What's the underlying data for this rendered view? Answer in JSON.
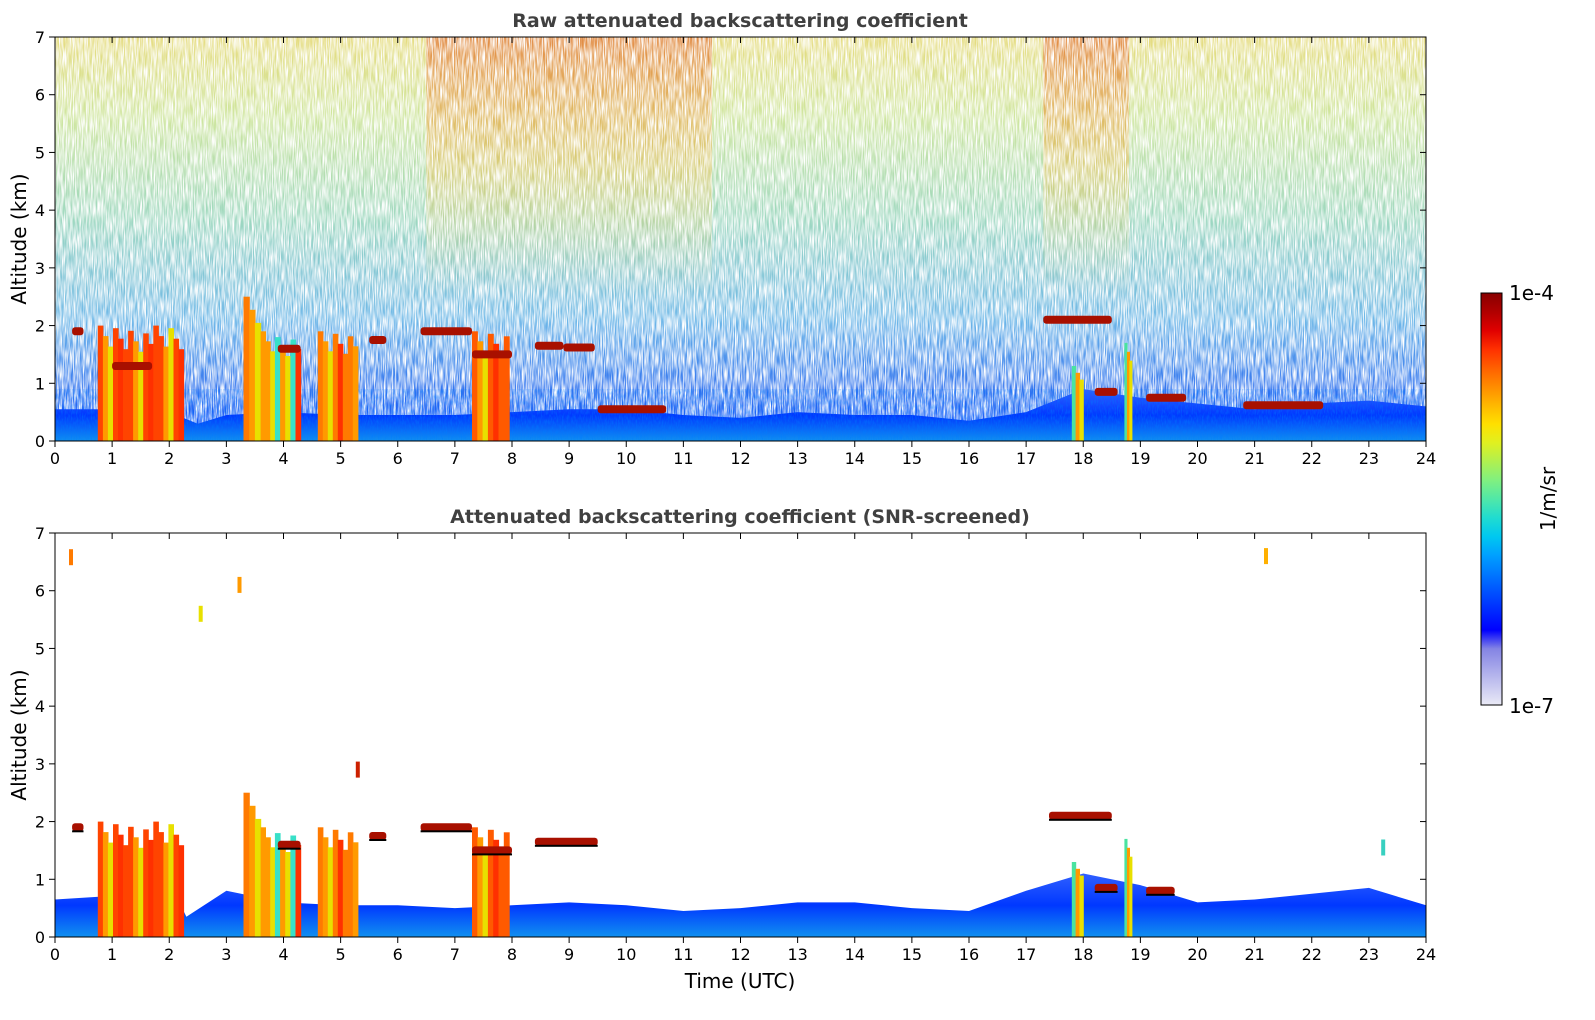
{
  "chart_data": [
    {
      "type": "heatmap",
      "title": "Raw attenuated backscattering coefficient",
      "xlabel": "",
      "ylabel": "Altitude (km)",
      "xlim": [
        0,
        24
      ],
      "ylim": [
        0,
        7
      ],
      "xticks": [
        "0",
        "1",
        "2",
        "3",
        "4",
        "5",
        "6",
        "7",
        "8",
        "9",
        "10",
        "11",
        "12",
        "13",
        "14",
        "15",
        "16",
        "17",
        "18",
        "19",
        "20",
        "21",
        "22",
        "23",
        "24"
      ],
      "yticks": [
        "0",
        "1",
        "2",
        "3",
        "4",
        "5",
        "6",
        "7"
      ],
      "screened": false,
      "boundary_layer_top_km": [
        [
          0,
          0.55
        ],
        [
          1,
          0.55
        ],
        [
          2,
          0.5
        ],
        [
          2.5,
          0.3
        ],
        [
          3,
          0.45
        ],
        [
          4,
          0.5
        ],
        [
          5,
          0.45
        ],
        [
          6,
          0.45
        ],
        [
          7,
          0.45
        ],
        [
          8,
          0.5
        ],
        [
          9,
          0.55
        ],
        [
          10,
          0.55
        ],
        [
          11,
          0.45
        ],
        [
          12,
          0.4
        ],
        [
          13,
          0.5
        ],
        [
          14,
          0.45
        ],
        [
          15,
          0.45
        ],
        [
          16,
          0.35
        ],
        [
          17,
          0.5
        ],
        [
          18,
          0.9
        ],
        [
          19,
          0.75
        ],
        [
          20,
          0.65
        ],
        [
          21,
          0.55
        ],
        [
          22,
          0.65
        ],
        [
          23,
          0.7
        ],
        [
          24,
          0.6
        ]
      ],
      "aerosol_columns": [
        {
          "x_start": 0.75,
          "x_end": 2.25,
          "top_km": 2.0,
          "color": "#ff4400"
        },
        {
          "x_start": 3.3,
          "x_end": 3.6,
          "top_km": 2.5,
          "color": "#ff7a00"
        },
        {
          "x_start": 3.6,
          "x_end": 3.85,
          "top_km": 1.9,
          "color": "#ff9a00"
        },
        {
          "x_start": 3.85,
          "x_end": 4.3,
          "top_km": 1.8,
          "color": "#38e0c8"
        },
        {
          "x_start": 4.6,
          "x_end": 5.3,
          "top_km": 1.9,
          "color": "#ff7a00"
        },
        {
          "x_start": 7.3,
          "x_end": 7.95,
          "top_km": 1.9,
          "color": "#ff5a00"
        },
        {
          "x_start": 17.8,
          "x_end": 18.0,
          "top_km": 1.3,
          "color": "#4ae3a0"
        },
        {
          "x_start": 18.72,
          "x_end": 18.85,
          "top_km": 1.7,
          "color": "#4ae3a0"
        }
      ],
      "cloud_layers": [
        {
          "x_start": 0.3,
          "x_end": 0.5,
          "altitude_km": 1.9
        },
        {
          "x_start": 1.0,
          "x_end": 1.7,
          "altitude_km": 1.3
        },
        {
          "x_start": 3.9,
          "x_end": 4.3,
          "altitude_km": 1.6
        },
        {
          "x_start": 5.5,
          "x_end": 5.8,
          "altitude_km": 1.75
        },
        {
          "x_start": 6.4,
          "x_end": 7.3,
          "altitude_km": 1.9
        },
        {
          "x_start": 7.3,
          "x_end": 8.0,
          "altitude_km": 1.5
        },
        {
          "x_start": 8.4,
          "x_end": 8.9,
          "altitude_km": 1.65
        },
        {
          "x_start": 8.9,
          "x_end": 9.45,
          "altitude_km": 1.62
        },
        {
          "x_start": 9.5,
          "x_end": 10.7,
          "altitude_km": 0.55
        },
        {
          "x_start": 17.3,
          "x_end": 18.5,
          "altitude_km": 2.1
        },
        {
          "x_start": 18.2,
          "x_end": 18.6,
          "altitude_km": 0.85
        },
        {
          "x_start": 19.1,
          "x_end": 19.8,
          "altitude_km": 0.75
        },
        {
          "x_start": 20.8,
          "x_end": 22.2,
          "altitude_km": 0.62
        }
      ],
      "high_signal_periods": [
        [
          6.5,
          11.5
        ],
        [
          17.3,
          18.8
        ]
      ]
    },
    {
      "type": "heatmap",
      "title": "Attenuated backscattering coefficient (SNR-screened)",
      "xlabel": "Time (UTC)",
      "ylabel": "Altitude (km)",
      "xlim": [
        0,
        24
      ],
      "ylim": [
        0,
        7
      ],
      "xticks": [
        "0",
        "1",
        "2",
        "3",
        "4",
        "5",
        "6",
        "7",
        "8",
        "9",
        "10",
        "11",
        "12",
        "13",
        "14",
        "15",
        "16",
        "17",
        "18",
        "19",
        "20",
        "21",
        "22",
        "23",
        "24"
      ],
      "yticks": [
        "0",
        "1",
        "2",
        "3",
        "4",
        "5",
        "6",
        "7"
      ],
      "screened": true,
      "boundary_layer_top_km": [
        [
          0,
          0.65
        ],
        [
          0.8,
          0.7
        ],
        [
          1,
          1.0
        ],
        [
          2,
          0.95
        ],
        [
          2.3,
          0.35
        ],
        [
          3,
          0.8
        ],
        [
          4,
          0.6
        ],
        [
          5,
          0.55
        ],
        [
          6,
          0.55
        ],
        [
          7,
          0.5
        ],
        [
          8,
          0.55
        ],
        [
          9,
          0.6
        ],
        [
          10,
          0.55
        ],
        [
          11,
          0.45
        ],
        [
          12,
          0.5
        ],
        [
          13,
          0.6
        ],
        [
          14,
          0.6
        ],
        [
          15,
          0.5
        ],
        [
          16,
          0.45
        ],
        [
          17,
          0.8
        ],
        [
          18,
          1.1
        ],
        [
          19,
          0.9
        ],
        [
          20,
          0.6
        ],
        [
          21,
          0.65
        ],
        [
          22,
          0.75
        ],
        [
          23,
          0.85
        ],
        [
          24,
          0.55
        ]
      ],
      "aerosol_columns": [
        {
          "x_start": 0.75,
          "x_end": 2.25,
          "top_km": 2.0,
          "color": "#ff4400"
        },
        {
          "x_start": 3.3,
          "x_end": 3.6,
          "top_km": 2.5,
          "color": "#ff7a00"
        },
        {
          "x_start": 3.6,
          "x_end": 3.85,
          "top_km": 1.9,
          "color": "#ff9a00"
        },
        {
          "x_start": 3.85,
          "x_end": 4.3,
          "top_km": 1.8,
          "color": "#38e0c8"
        },
        {
          "x_start": 4.6,
          "x_end": 5.3,
          "top_km": 1.9,
          "color": "#ff7a00"
        },
        {
          "x_start": 7.3,
          "x_end": 7.95,
          "top_km": 1.9,
          "color": "#ff5a00"
        },
        {
          "x_start": 17.8,
          "x_end": 18.0,
          "top_km": 1.3,
          "color": "#4ae3a0"
        },
        {
          "x_start": 18.72,
          "x_end": 18.85,
          "top_km": 1.7,
          "color": "#4ae3a0"
        }
      ],
      "cloud_layers": [
        {
          "x_start": 0.3,
          "x_end": 0.5,
          "altitude_km": 1.9
        },
        {
          "x_start": 3.9,
          "x_end": 4.3,
          "altitude_km": 1.6
        },
        {
          "x_start": 5.5,
          "x_end": 5.8,
          "altitude_km": 1.75
        },
        {
          "x_start": 6.4,
          "x_end": 7.3,
          "altitude_km": 1.9
        },
        {
          "x_start": 7.3,
          "x_end": 8.0,
          "altitude_km": 1.5
        },
        {
          "x_start": 8.4,
          "x_end": 9.5,
          "altitude_km": 1.65
        },
        {
          "x_start": 17.4,
          "x_end": 18.5,
          "altitude_km": 2.1
        },
        {
          "x_start": 18.2,
          "x_end": 18.6,
          "altitude_km": 0.85
        },
        {
          "x_start": 19.1,
          "x_end": 19.6,
          "altitude_km": 0.8
        }
      ],
      "isolated_echoes": [
        {
          "x": 0.28,
          "altitude_km": 6.58,
          "color": "#ff7a00"
        },
        {
          "x": 2.55,
          "altitude_km": 5.6,
          "color": "#e8e000"
        },
        {
          "x": 3.23,
          "altitude_km": 6.1,
          "color": "#ff9a00"
        },
        {
          "x": 5.3,
          "altitude_km": 2.9,
          "color": "#cc2000"
        },
        {
          "x": 21.2,
          "altitude_km": 6.6,
          "color": "#ffb000"
        },
        {
          "x": 23.25,
          "altitude_km": 1.55,
          "color": "#38d0c0"
        }
      ]
    }
  ],
  "colorbar": {
    "label": "1/m/sr",
    "max_label": "1e-4",
    "min_label": "1e-7",
    "colors": [
      "#eaeaf6",
      "#c8c8f0",
      "#a6a6ea",
      "#8484e4",
      "#0000ff",
      "#0028ff",
      "#0050ff",
      "#0078ff",
      "#00a0ff",
      "#00c8f0",
      "#20dcd0",
      "#50e8a8",
      "#80f080",
      "#b0f050",
      "#e0f020",
      "#ffe000",
      "#ffb800",
      "#ff8c00",
      "#ff6000",
      "#ff3000",
      "#e00000",
      "#b00000",
      "#880000"
    ]
  }
}
